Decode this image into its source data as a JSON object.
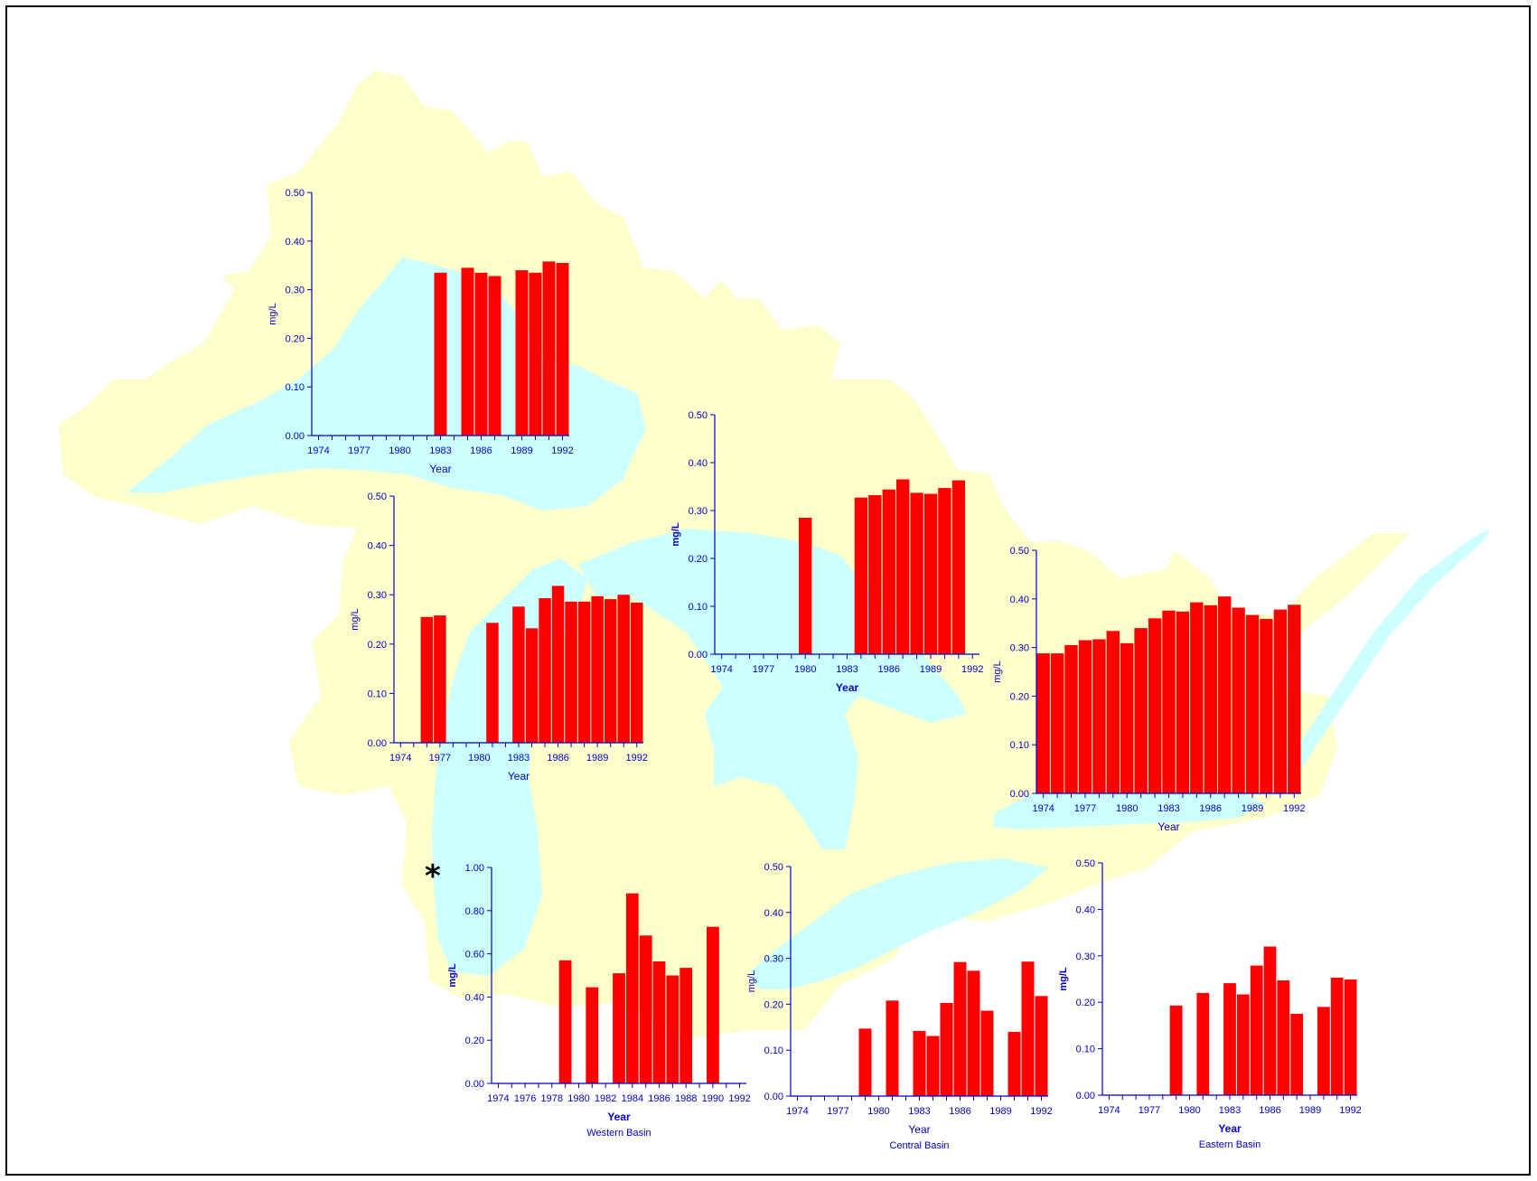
{
  "colors": {
    "land": "#ffffcc",
    "water": "#ccffff",
    "bar": "#ff0000",
    "axis": "#0000cc",
    "frame": "#000000"
  },
  "map": {
    "name": "great-lakes-basin-map"
  },
  "asterisk": "*",
  "chart_data": [
    {
      "id": "lake-superior",
      "type": "bar",
      "ylabel": "mg/L",
      "xlabel": "Year",
      "subtitle": "",
      "ylim": [
        0,
        0.5
      ],
      "yticks": [
        "0.00",
        "0.10",
        "0.20",
        "0.30",
        "0.40",
        "0.50"
      ],
      "xticks": [
        "1974",
        "1977",
        "1980",
        "1983",
        "1986",
        "1989",
        "1992"
      ],
      "xtick_years": [
        1974,
        1977,
        1980,
        1983,
        1986,
        1989,
        1992
      ],
      "categories": [
        1974,
        1975,
        1976,
        1977,
        1978,
        1979,
        1980,
        1981,
        1982,
        1983,
        1984,
        1985,
        1986,
        1987,
        1988,
        1989,
        1990,
        1991,
        1992
      ],
      "values": [
        null,
        null,
        null,
        null,
        null,
        null,
        null,
        null,
        null,
        0.335,
        null,
        0.345,
        0.335,
        0.328,
        null,
        0.34,
        0.335,
        0.358,
        0.355
      ]
    },
    {
      "id": "lake-michigan",
      "type": "bar",
      "ylabel": "mg/L",
      "xlabel": "Year",
      "subtitle": "",
      "ylim": [
        0,
        0.5
      ],
      "yticks": [
        "0.00",
        "0.10",
        "0.20",
        "0.30",
        "0.40",
        "0.50"
      ],
      "xticks": [
        "1974",
        "1977",
        "1980",
        "1983",
        "1986",
        "1989",
        "1992"
      ],
      "xtick_years": [
        1974,
        1977,
        1980,
        1983,
        1986,
        1989,
        1992
      ],
      "categories": [
        1974,
        1975,
        1976,
        1977,
        1978,
        1979,
        1980,
        1981,
        1982,
        1983,
        1984,
        1985,
        1986,
        1987,
        1988,
        1989,
        1990,
        1991,
        1992
      ],
      "values": [
        null,
        null,
        0.255,
        0.258,
        null,
        null,
        null,
        0.243,
        null,
        0.276,
        0.232,
        0.293,
        0.318,
        0.286,
        0.286,
        0.297,
        0.291,
        0.3,
        0.284
      ]
    },
    {
      "id": "lake-huron",
      "type": "bar",
      "ylabel": "mg/L",
      "xlabel": "Year",
      "subtitle": "",
      "ylim": [
        0,
        0.5
      ],
      "yticks": [
        "0.00",
        "0.10",
        "0.20",
        "0.30",
        "0.40",
        "0.50"
      ],
      "xticks": [
        "1974",
        "1977",
        "1980",
        "1983",
        "1986",
        "1989",
        "1992"
      ],
      "xtick_years": [
        1974,
        1977,
        1980,
        1983,
        1986,
        1989,
        1992
      ],
      "categories": [
        1974,
        1975,
        1976,
        1977,
        1978,
        1979,
        1980,
        1981,
        1982,
        1983,
        1984,
        1985,
        1986,
        1987,
        1988,
        1989,
        1990,
        1991,
        1992
      ],
      "values": [
        null,
        null,
        null,
        null,
        null,
        null,
        0.285,
        null,
        null,
        null,
        0.327,
        0.332,
        0.344,
        0.365,
        0.337,
        0.335,
        0.347,
        0.363,
        null
      ]
    },
    {
      "id": "lake-ontario",
      "type": "bar",
      "ylabel": "mg/L",
      "xlabel": "Year",
      "subtitle": "",
      "ylim": [
        0,
        0.5
      ],
      "yticks": [
        "0.00",
        "0.10",
        "0.20",
        "0.30",
        "0.40",
        "0.50"
      ],
      "xticks": [
        "1974",
        "1977",
        "1980",
        "1983",
        "1986",
        "1989",
        "1992"
      ],
      "xtick_years": [
        1974,
        1977,
        1980,
        1983,
        1986,
        1989,
        1992
      ],
      "categories": [
        1974,
        1975,
        1976,
        1977,
        1978,
        1979,
        1980,
        1981,
        1982,
        1983,
        1984,
        1985,
        1986,
        1987,
        1988,
        1989,
        1990,
        1991,
        1992
      ],
      "values": [
        0.288,
        0.288,
        0.305,
        0.315,
        0.317,
        0.334,
        0.309,
        0.34,
        0.36,
        0.376,
        0.374,
        0.393,
        0.387,
        0.405,
        0.382,
        0.367,
        0.359,
        0.378,
        0.388
      ]
    },
    {
      "id": "lake-erie-western-basin",
      "type": "bar",
      "ylabel": "mg/L",
      "xlabel": "Year",
      "subtitle": "Western Basin",
      "ylim": [
        0,
        1.0
      ],
      "yticks": [
        "0.00",
        "0.20",
        "0.40",
        "0.60",
        "0.80",
        "1.00"
      ],
      "xticks": [
        "1974",
        "1976",
        "1978",
        "1980",
        "1982",
        "1984",
        "1986",
        "1988",
        "1990",
        "1992"
      ],
      "xtick_years": [
        1974,
        1976,
        1978,
        1980,
        1982,
        1984,
        1986,
        1988,
        1990,
        1992
      ],
      "categories": [
        1974,
        1975,
        1976,
        1977,
        1978,
        1979,
        1980,
        1981,
        1982,
        1983,
        1984,
        1985,
        1986,
        1987,
        1988,
        1989,
        1990,
        1991,
        1992
      ],
      "values": [
        null,
        null,
        null,
        null,
        null,
        0.57,
        null,
        0.445,
        null,
        0.51,
        0.88,
        0.685,
        0.565,
        0.5,
        0.535,
        null,
        0.725,
        null,
        null
      ]
    },
    {
      "id": "lake-erie-central-basin",
      "type": "bar",
      "ylabel": "mg/L",
      "xlabel": "Year",
      "subtitle": "Central Basin",
      "ylim": [
        0,
        0.5
      ],
      "yticks": [
        "0.00",
        "0.10",
        "0.20",
        "0.30",
        "0.40",
        "0.50"
      ],
      "xticks": [
        "1974",
        "1977",
        "1980",
        "1983",
        "1986",
        "1989",
        "1992"
      ],
      "xtick_years": [
        1974,
        1977,
        1980,
        1983,
        1986,
        1989,
        1992
      ],
      "categories": [
        1974,
        1975,
        1976,
        1977,
        1978,
        1979,
        1980,
        1981,
        1982,
        1983,
        1984,
        1985,
        1986,
        1987,
        1988,
        1989,
        1990,
        1991,
        1992
      ],
      "values": [
        null,
        null,
        null,
        null,
        null,
        0.147,
        null,
        0.208,
        null,
        0.142,
        0.131,
        0.203,
        0.292,
        0.273,
        0.186,
        null,
        0.14,
        0.293,
        0.218
      ]
    },
    {
      "id": "lake-erie-eastern-basin",
      "type": "bar",
      "ylabel": "mg/L",
      "xlabel": "Year",
      "subtitle": "Eastern Basin",
      "ylim": [
        0,
        0.5
      ],
      "yticks": [
        "0.00",
        "0.10",
        "0.20",
        "0.30",
        "0.40",
        "0.50"
      ],
      "xticks": [
        "1974",
        "1977",
        "1980",
        "1983",
        "1986",
        "1989",
        "1992"
      ],
      "xtick_years": [
        1974,
        1977,
        1980,
        1983,
        1986,
        1989,
        1992
      ],
      "categories": [
        1974,
        1975,
        1976,
        1977,
        1978,
        1979,
        1980,
        1981,
        1982,
        1983,
        1984,
        1985,
        1986,
        1987,
        1988,
        1989,
        1990,
        1991,
        1992
      ],
      "values": [
        null,
        null,
        null,
        null,
        null,
        0.193,
        null,
        0.22,
        null,
        0.241,
        0.217,
        0.279,
        0.32,
        0.247,
        0.175,
        null,
        0.19,
        0.253,
        0.249
      ]
    }
  ]
}
